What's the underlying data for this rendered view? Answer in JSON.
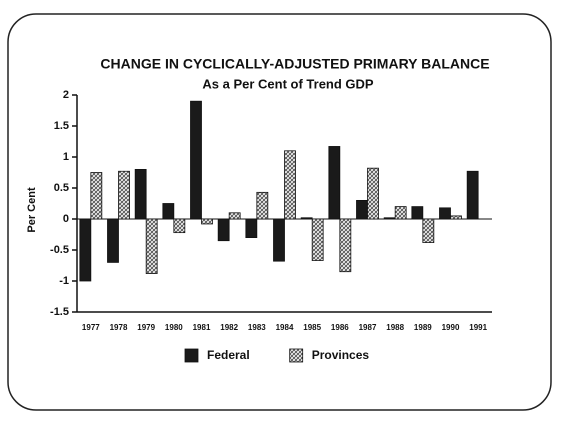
{
  "chart_data": {
    "type": "bar",
    "title": "CHANGE IN CYCLICALLY-ADJUSTED PRIMARY BALANCE",
    "subtitle": "As a Per Cent of Trend GDP",
    "y_label": "Per Cent",
    "categories": [
      "1977",
      "1978",
      "1979",
      "1980",
      "1981",
      "1982",
      "1983",
      "1984",
      "1985",
      "1986",
      "1987",
      "1988",
      "1989",
      "1990",
      "1991"
    ],
    "series": [
      {
        "name": "Federal",
        "color": "#1a1a1a",
        "pattern": "solid",
        "values": [
          -1.0,
          -0.7,
          0.8,
          0.25,
          1.9,
          -0.35,
          -0.3,
          -0.68,
          0.02,
          1.17,
          0.3,
          0.02,
          0.2,
          0.18,
          0.77
        ]
      },
      {
        "name": "Provinces",
        "color": "#555555",
        "pattern": "hatch",
        "values": [
          0.75,
          0.77,
          -0.88,
          -0.22,
          -0.08,
          0.1,
          0.43,
          1.1,
          -0.67,
          -0.85,
          0.82,
          0.2,
          -0.38,
          0.05,
          null
        ]
      }
    ],
    "ylim": [
      -1.5,
      2
    ],
    "yticks": [
      -1.5,
      -1,
      -0.5,
      0,
      0.5,
      1,
      1.5,
      2
    ],
    "legend": "bottom"
  }
}
